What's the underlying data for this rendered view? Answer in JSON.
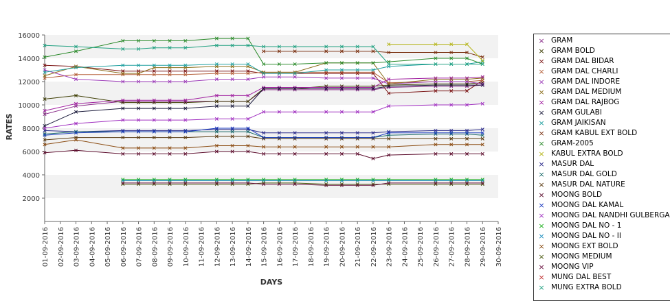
{
  "chart_data": {
    "type": "line",
    "title": "",
    "xlabel": "DAYS",
    "ylabel": "RATES",
    "ylim": [
      0,
      16000
    ],
    "yticks": [
      2000,
      4000,
      6000,
      8000,
      10000,
      12000,
      14000,
      16000
    ],
    "grid": "alternating horizontal bands",
    "legend_position": "right",
    "categories": [
      "01-09-2016",
      "02-09-2016",
      "03-09-2016",
      "04-09-2016",
      "05-09-2016",
      "06-09-2016",
      "07-09-2016",
      "08-09-2016",
      "09-09-2016",
      "10-09-2016",
      "11-09-2016",
      "12-09-2016",
      "13-09-2016",
      "14-09-2016",
      "15-09-2016",
      "16-09-2016",
      "17-09-2016",
      "18-09-2016",
      "19-09-2016",
      "20-09-2016",
      "21-09-2016",
      "22-09-2016",
      "23-09-2016",
      "24-09-2016",
      "25-09-2016",
      "26-09-2016",
      "27-09-2016",
      "28-09-2016",
      "29-09-2016",
      "30-09-2016"
    ],
    "series": [
      {
        "name": "GRAM",
        "color": "#8b2f8b",
        "values": [
          9200,
          null,
          9900,
          null,
          null,
          10300,
          10300,
          10300,
          10300,
          10300,
          null,
          10300,
          10300,
          10300,
          11300,
          11300,
          11300,
          null,
          11300,
          11300,
          11300,
          11300,
          11500,
          null,
          null,
          11600,
          11600,
          11600,
          11700,
          null
        ]
      },
      {
        "name": "GRAM BOLD",
        "color": "#3b3b00",
        "values": [
          10500,
          null,
          10800,
          null,
          null,
          10200,
          10200,
          10200,
          10200,
          10200,
          null,
          10300,
          10300,
          10300,
          11400,
          11400,
          11400,
          null,
          11600,
          11600,
          11600,
          11600,
          11700,
          null,
          null,
          11800,
          11800,
          11800,
          11900,
          null
        ]
      },
      {
        "name": "GRAM DAL BIDAR",
        "color": "#7a1212",
        "values": [
          13400,
          null,
          13300,
          null,
          null,
          12900,
          12900,
          12900,
          12900,
          12900,
          null,
          12900,
          12900,
          12900,
          12700,
          12700,
          12700,
          null,
          12700,
          12700,
          12700,
          12700,
          11000,
          null,
          null,
          11200,
          11200,
          11200,
          12100,
          null
        ]
      },
      {
        "name": "GRAM DAL CHARLI",
        "color": "#b5603a",
        "values": [
          12300,
          null,
          12600,
          null,
          null,
          12600,
          12600,
          12600,
          12600,
          12600,
          null,
          12700,
          12700,
          12700,
          12800,
          12800,
          12800,
          null,
          12800,
          12800,
          12800,
          12800,
          11900,
          null,
          null,
          12000,
          12000,
          12000,
          12100,
          null
        ]
      },
      {
        "name": "GRAM DAL INDORE",
        "color": "#9c3cb8",
        "values": [
          13000,
          null,
          12200,
          null,
          null,
          12000,
          12000,
          12000,
          12000,
          12000,
          null,
          12200,
          12200,
          12200,
          12400,
          12400,
          12400,
          null,
          12300,
          12300,
          12300,
          12300,
          11800,
          null,
          null,
          12000,
          12000,
          12000,
          11800,
          null
        ]
      },
      {
        "name": "GRAM DAL MEDIUM",
        "color": "#8b6d1a",
        "values": [
          12500,
          null,
          13300,
          null,
          null,
          12700,
          12700,
          13200,
          13200,
          13200,
          null,
          13300,
          13300,
          13300,
          12800,
          12800,
          12800,
          null,
          13600,
          13600,
          13600,
          13600,
          11800,
          null,
          null,
          12200,
          12200,
          12200,
          12300,
          null
        ]
      },
      {
        "name": "GRAM DAL RAJBOG",
        "color": "#a020a0",
        "values": [
          9500,
          null,
          10100,
          null,
          null,
          10400,
          10400,
          10400,
          10400,
          10400,
          null,
          10800,
          10800,
          10800,
          11500,
          11500,
          11500,
          null,
          11500,
          11500,
          11500,
          11500,
          12200,
          null,
          null,
          12300,
          12300,
          12300,
          12400,
          null
        ]
      },
      {
        "name": "GRAM GULABI",
        "color": "#1a1a3b",
        "values": [
          8200,
          null,
          9400,
          null,
          null,
          9700,
          9700,
          9700,
          9700,
          9700,
          null,
          9900,
          9900,
          9900,
          11400,
          11400,
          11400,
          null,
          11400,
          11400,
          11400,
          11400,
          11600,
          null,
          null,
          11700,
          11700,
          11700,
          11700,
          null
        ]
      },
      {
        "name": "GRAM JAIKISAN",
        "color": "#20a0a0",
        "values": [
          12800,
          null,
          13200,
          null,
          null,
          13400,
          13400,
          13400,
          13400,
          13400,
          null,
          13500,
          13500,
          13500,
          12700,
          12700,
          12700,
          null,
          13000,
          13000,
          13000,
          13000,
          13300,
          null,
          null,
          13500,
          13500,
          13500,
          13700,
          null
        ]
      },
      {
        "name": "GRAM KABUL EXT BOLD",
        "color": "#7a3010",
        "values": [
          null,
          null,
          null,
          null,
          null,
          null,
          null,
          null,
          null,
          null,
          null,
          null,
          null,
          null,
          14600,
          14600,
          14600,
          null,
          14600,
          14600,
          14600,
          14600,
          14500,
          null,
          null,
          14500,
          14500,
          14500,
          14100,
          null
        ]
      },
      {
        "name": "GRAM-2005",
        "color": "#2a8a2a",
        "values": [
          14100,
          null,
          14600,
          null,
          null,
          15500,
          15500,
          15500,
          15500,
          15500,
          null,
          15700,
          15700,
          15700,
          13500,
          13500,
          13500,
          null,
          13600,
          13600,
          13600,
          13600,
          13700,
          null,
          null,
          14000,
          14000,
          14000,
          13500,
          null
        ]
      },
      {
        "name": "KABUL EXTRA BOLD",
        "color": "#b5b51a",
        "values": [
          null,
          null,
          null,
          null,
          null,
          null,
          null,
          null,
          null,
          null,
          null,
          null,
          null,
          null,
          null,
          null,
          null,
          null,
          null,
          null,
          null,
          null,
          15200,
          null,
          null,
          15200,
          15200,
          15200,
          13800,
          null
        ]
      },
      {
        "name": "MASUR DAL",
        "color": "#2a2a8a",
        "values": [
          7800,
          null,
          7700,
          null,
          null,
          7800,
          7800,
          7800,
          7800,
          7800,
          null,
          7900,
          7900,
          7900,
          7600,
          7600,
          7600,
          null,
          7600,
          7600,
          7600,
          7600,
          7700,
          null,
          null,
          7800,
          7800,
          7800,
          7900,
          null
        ]
      },
      {
        "name": "MASUR DAL GOLD",
        "color": "#1a6a6a",
        "values": [
          7500,
          null,
          7700,
          null,
          null,
          7700,
          7700,
          7700,
          7700,
          7700,
          null,
          7700,
          7700,
          7700,
          7200,
          7200,
          7200,
          null,
          7200,
          7200,
          7200,
          7200,
          7400,
          null,
          null,
          7500,
          7500,
          7500,
          7400,
          null
        ]
      },
      {
        "name": "MASUR DAL NATURE",
        "color": "#5a3a10",
        "values": [
          7000,
          null,
          7200,
          null,
          null,
          7200,
          7200,
          7200,
          7200,
          7200,
          null,
          7300,
          7300,
          7300,
          7100,
          7100,
          7100,
          null,
          7100,
          7100,
          7100,
          7100,
          7100,
          null,
          null,
          7100,
          7100,
          7100,
          7100,
          null
        ]
      },
      {
        "name": "MOONG BOLD",
        "color": "#5a0a2a",
        "values": [
          5900,
          null,
          6100,
          null,
          null,
          5800,
          5800,
          5800,
          5800,
          5800,
          null,
          6000,
          6000,
          6000,
          5800,
          5800,
          5800,
          null,
          5800,
          5800,
          5800,
          5400,
          5700,
          null,
          null,
          5800,
          5800,
          5800,
          5800,
          null
        ]
      },
      {
        "name": "MOONG DAL KAMAL",
        "color": "#1a3ac0",
        "values": [
          7400,
          null,
          7600,
          null,
          null,
          7700,
          7700,
          7700,
          7700,
          7700,
          null,
          8000,
          8000,
          8000,
          7200,
          7200,
          7200,
          null,
          7200,
          7200,
          7200,
          7200,
          7600,
          null,
          null,
          7600,
          7600,
          7600,
          7600,
          null
        ]
      },
      {
        "name": "MOONG DAL NANDHI GULBERGA",
        "color": "#a030c0",
        "values": [
          8000,
          null,
          8400,
          null,
          null,
          8700,
          8700,
          8700,
          8700,
          8700,
          null,
          8800,
          8800,
          8800,
          9400,
          9400,
          9400,
          null,
          9400,
          9400,
          9400,
          9400,
          9900,
          null,
          null,
          10000,
          10000,
          10000,
          10100,
          null
        ]
      },
      {
        "name": "MOONG DAL NO - 1",
        "color": "#20b020",
        "values": [
          null,
          null,
          null,
          null,
          null,
          3600,
          3600,
          3600,
          3600,
          3600,
          null,
          3600,
          3600,
          3600,
          3600,
          3600,
          3600,
          null,
          3600,
          3600,
          3600,
          3600,
          3600,
          null,
          null,
          3600,
          3600,
          3600,
          3600,
          null
        ]
      },
      {
        "name": "MOONG DAL NO - II",
        "color": "#2090c0",
        "values": [
          null,
          null,
          null,
          null,
          null,
          3500,
          3500,
          3500,
          3500,
          3500,
          null,
          3500,
          3500,
          3500,
          3500,
          3500,
          3500,
          null,
          3500,
          3500,
          3500,
          3500,
          3500,
          null,
          null,
          3500,
          3500,
          3500,
          3500,
          null
        ]
      },
      {
        "name": "MOONG EXT BOLD",
        "color": "#8a4a10",
        "values": [
          6600,
          null,
          7000,
          null,
          null,
          6300,
          6300,
          6300,
          6300,
          6300,
          null,
          6500,
          6500,
          6500,
          6400,
          6400,
          6400,
          null,
          6400,
          6400,
          6400,
          6400,
          6400,
          null,
          null,
          6600,
          6600,
          6600,
          6600,
          null
        ]
      },
      {
        "name": "MOONG MEDIUM",
        "color": "#4a5a10",
        "values": [
          null,
          null,
          null,
          null,
          null,
          3200,
          3200,
          3200,
          3200,
          3200,
          null,
          3200,
          3200,
          3200,
          3300,
          3300,
          3300,
          null,
          3200,
          3200,
          3200,
          3200,
          3200,
          null,
          null,
          3200,
          3200,
          3200,
          3200,
          null
        ]
      },
      {
        "name": "MOONG VIP",
        "color": "#6a1040",
        "values": [
          null,
          null,
          null,
          null,
          null,
          3300,
          3300,
          3300,
          3300,
          3300,
          null,
          3300,
          3300,
          3300,
          3200,
          3200,
          3200,
          null,
          3100,
          3100,
          3100,
          3100,
          3300,
          null,
          null,
          3300,
          3300,
          3300,
          3300,
          null
        ]
      },
      {
        "name": "MUNG DAL BEST",
        "color": "#c03030",
        "values": [
          null,
          null,
          null,
          null,
          null,
          null,
          null,
          null,
          null,
          null,
          null,
          null,
          null,
          null,
          null,
          null,
          null,
          null,
          null,
          null,
          null,
          null,
          null,
          null,
          null,
          null,
          null,
          null,
          null,
          null
        ]
      },
      {
        "name": "MUNG EXTRA BOLD",
        "color": "#20a080",
        "values": [
          15100,
          null,
          15000,
          null,
          null,
          14800,
          14800,
          14900,
          14900,
          14900,
          null,
          15100,
          15100,
          15100,
          15000,
          15000,
          15000,
          null,
          15000,
          15000,
          15000,
          15000,
          13500,
          null,
          null,
          13500,
          13500,
          13500,
          13500,
          null
        ]
      }
    ]
  }
}
